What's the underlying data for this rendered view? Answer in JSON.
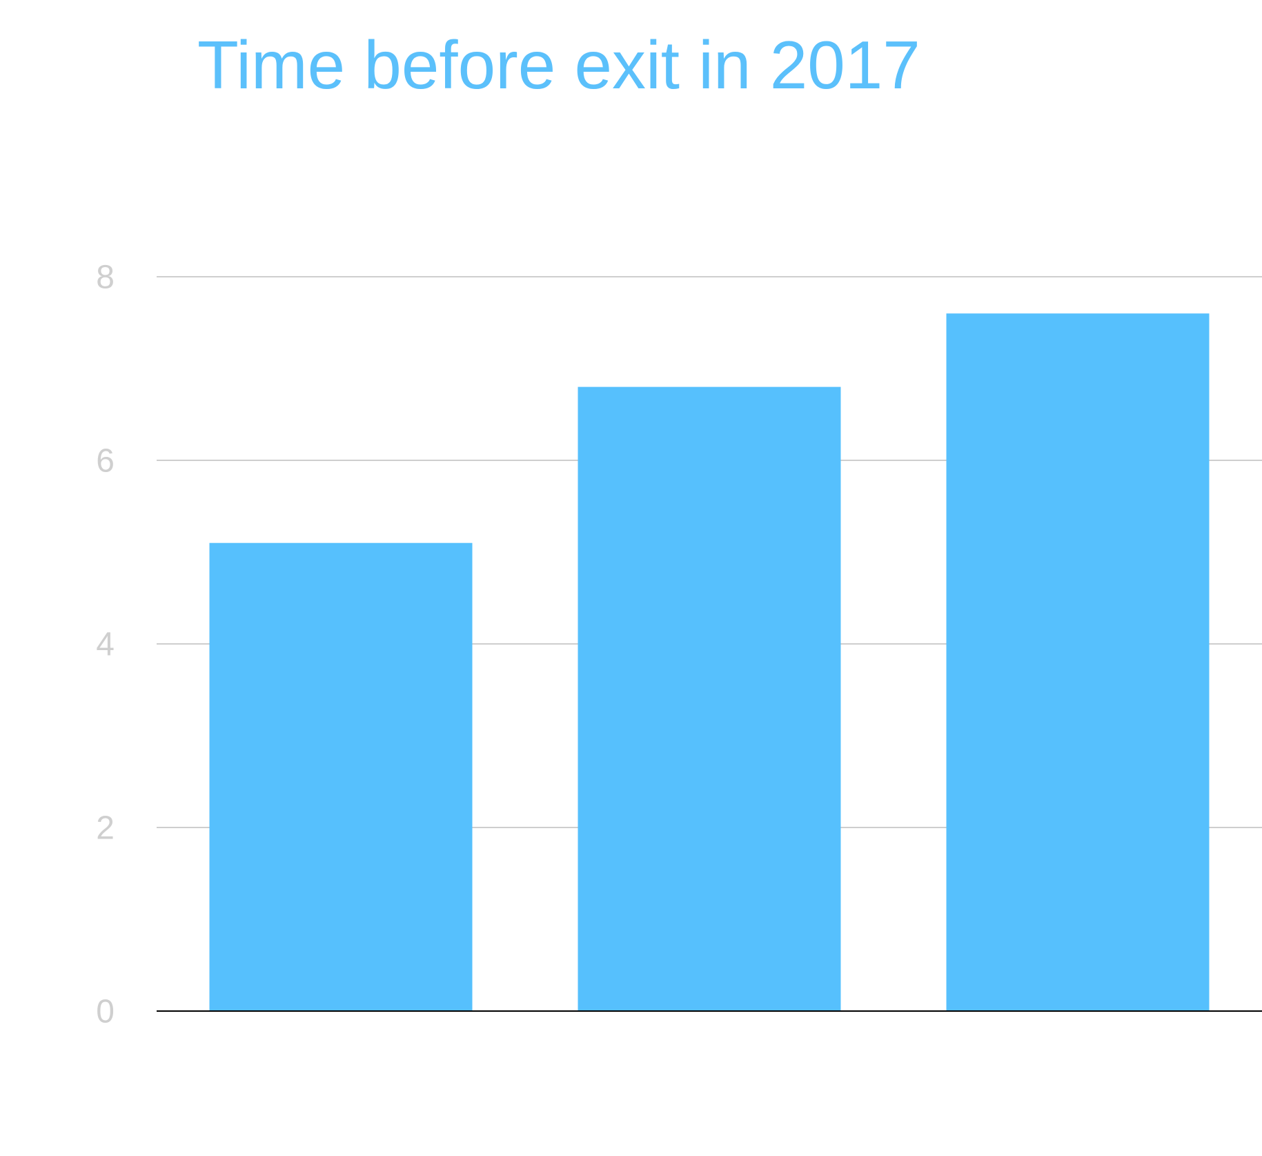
{
  "chart_data": {
    "type": "bar",
    "title": "Time before exit in 2017",
    "categories": [
      null,
      null,
      null
    ],
    "values": [
      5.1,
      6.8,
      7.6
    ],
    "color": "#56c0fd",
    "ylim": [
      0,
      8
    ],
    "yticks": [
      0,
      2,
      4,
      6,
      8
    ],
    "grid": true
  }
}
